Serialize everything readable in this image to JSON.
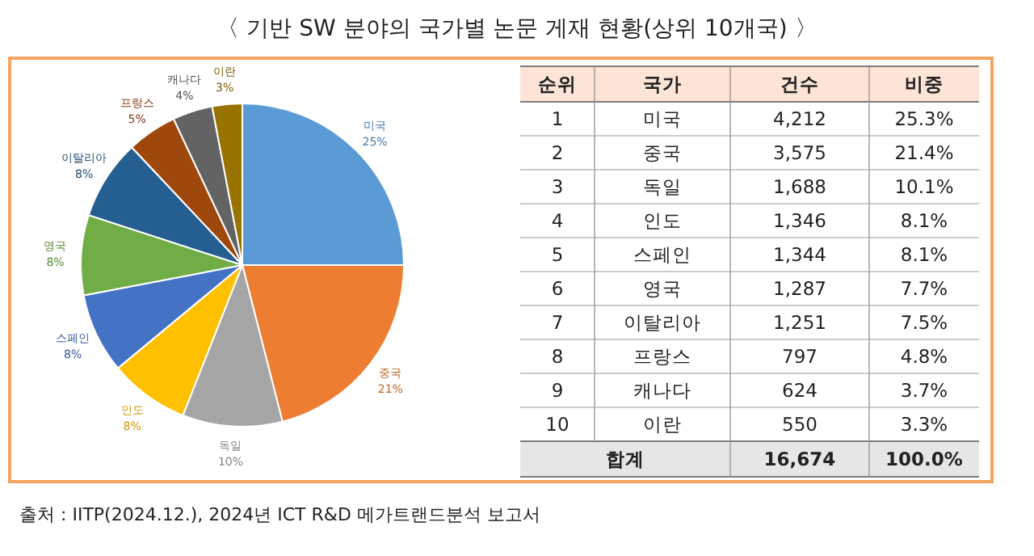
{
  "chart_data": {
    "type": "pie",
    "title": "〈 기반 SW 분야의 국가별 논문 게재 현황(상위 10개국) 〉",
    "categories": [
      "미국",
      "중국",
      "독일",
      "인도",
      "스페인",
      "영국",
      "이탈리아",
      "프랑스",
      "캐나다",
      "이란"
    ],
    "values": [
      25,
      21,
      10,
      8,
      8,
      8,
      8,
      5,
      4,
      3
    ],
    "value_labels": [
      "25%",
      "21%",
      "10%",
      "8%",
      "8%",
      "8%",
      "8%",
      "5%",
      "4%",
      "3%"
    ],
    "colors": [
      "#5b9bd5",
      "#ed7d31",
      "#a5a5a5",
      "#ffc000",
      "#4472c4",
      "#70ad47",
      "#255e91",
      "#9e480e",
      "#636363",
      "#997300"
    ],
    "annotations": [
      "출처 : IITP(2024.12.), 2024년 ICT R&D 메가트랜드분석 보고서",
      "순위",
      "국가",
      "건수",
      "비중",
      "1",
      "2",
      "3",
      "4",
      "5",
      "6",
      "7",
      "8",
      "9",
      "10",
      "25.3%",
      "21.4%",
      "10.1%",
      "8.1%",
      "8.1%",
      "7.7%",
      "7.5%",
      "4.8%",
      "3.7%",
      "3.3%",
      "합계",
      "16,674",
      "100.0%",
      "4,212",
      "3,575",
      "1,688",
      "1,346",
      "1,344",
      "1,287",
      "1,251",
      "797",
      "624",
      "550"
    ]
  }
}
